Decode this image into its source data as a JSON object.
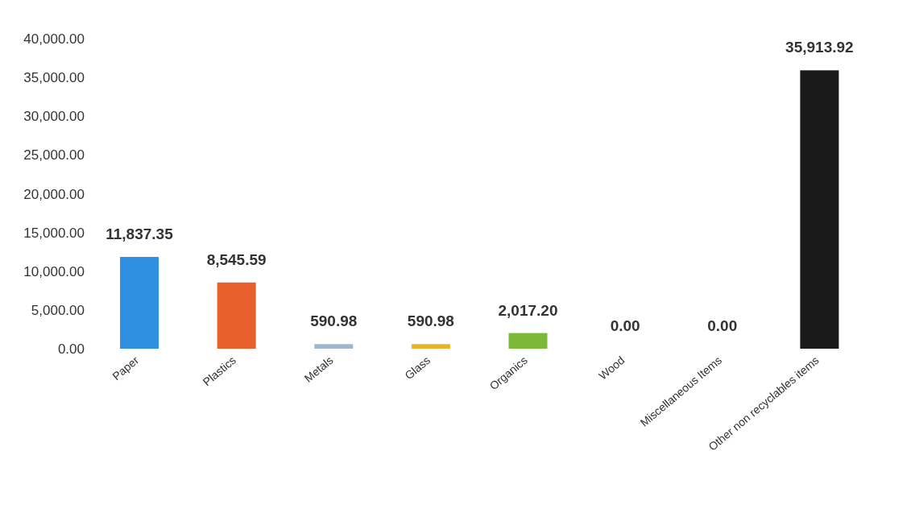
{
  "chart_data": {
    "type": "bar",
    "categories": [
      "Paper",
      "Plastics",
      "Metals",
      "Glass",
      "Organics",
      "Wood",
      "Miscellaneous Items",
      "Other non recyclables items"
    ],
    "values": [
      11837.35,
      8545.59,
      590.98,
      590.98,
      2017.2,
      0,
      0,
      35913.92
    ],
    "colors": [
      "#2e8fe0",
      "#e8602c",
      "#9fb8d0",
      "#e8b52a",
      "#7cb83a",
      "#6b3a2a",
      "#d0303a",
      "#1a1a1a"
    ],
    "value_labels": [
      "11,837.35",
      "8,545.59",
      "590.98",
      "590.98",
      "2,017.20",
      "0.00",
      "0.00",
      "35,913.92"
    ],
    "ylim": [
      0,
      40000
    ],
    "yticks": [
      {
        "value": 0,
        "label": "0.00"
      },
      {
        "value": 5000,
        "label": "5,000.00"
      },
      {
        "value": 10000,
        "label": "10,000.00"
      },
      {
        "value": 15000,
        "label": "15,000.00"
      },
      {
        "value": 20000,
        "label": "20,000.00"
      },
      {
        "value": 25000,
        "label": "25,000.00"
      },
      {
        "value": 30000,
        "label": "30,000.00"
      },
      {
        "value": 35000,
        "label": "35,000.00"
      },
      {
        "value": 40000,
        "label": "40,000.00"
      }
    ],
    "grid": false,
    "legend": false
  }
}
